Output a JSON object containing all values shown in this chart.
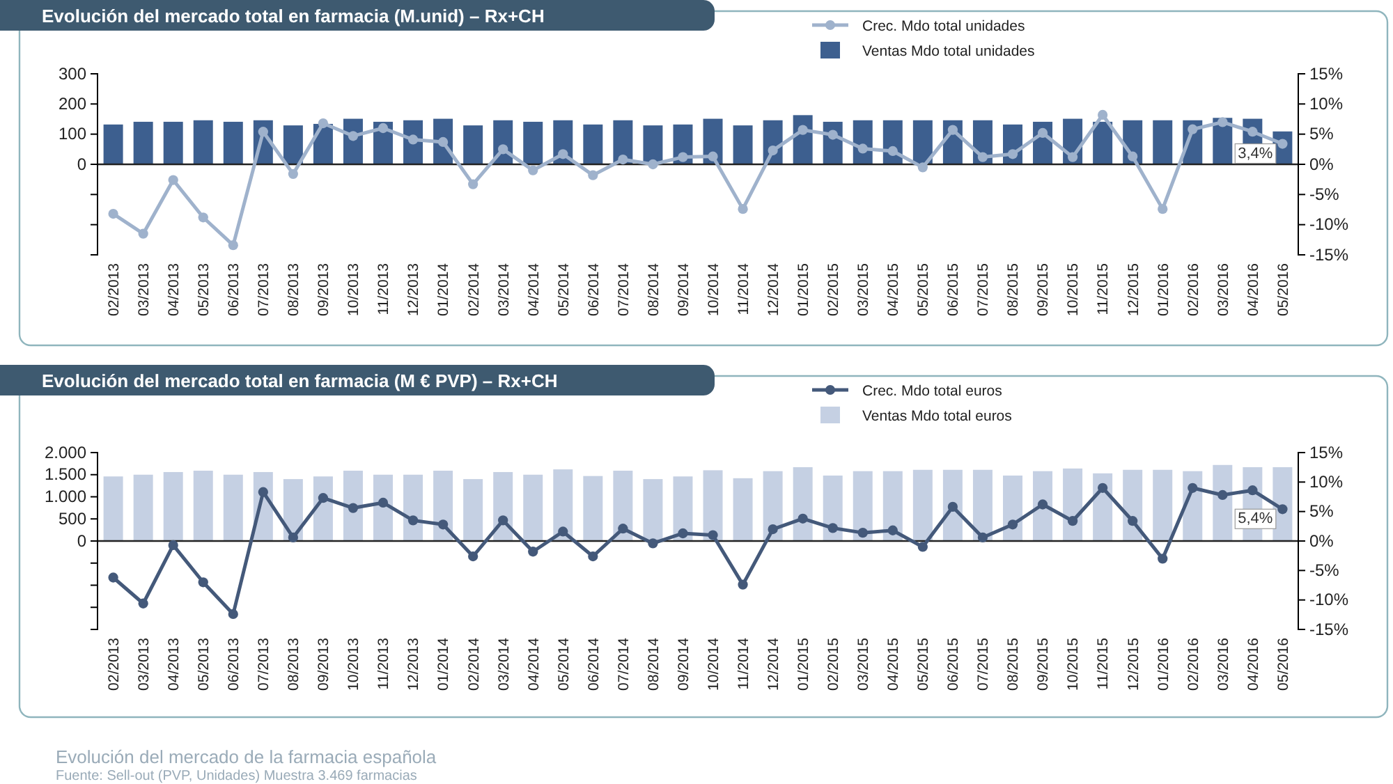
{
  "chart_data": [
    {
      "type": "bar",
      "title": "Evolución del mercado total en farmacia (M.unid) – Rx+CH",
      "categories": [
        "02/2013",
        "03/2013",
        "04/2013",
        "05/2013",
        "06/2013",
        "07/2013",
        "08/2013",
        "09/2013",
        "10/2013",
        "11/2013",
        "12/2013",
        "01/2014",
        "02/2014",
        "03/2014",
        "04/2014",
        "05/2014",
        "06/2014",
        "07/2014",
        "08/2014",
        "09/2014",
        "10/2014",
        "11/2014",
        "12/2014",
        "01/2015",
        "02/2015",
        "03/2015",
        "04/2015",
        "05/2015",
        "06/2015",
        "07/2015",
        "08/2015",
        "09/2015",
        "10/2015",
        "11/2015",
        "12/2015",
        "01/2016",
        "02/2016",
        "03/2016",
        "04/2016",
        "05/2016"
      ],
      "series": [
        {
          "name": "Crec. Mdo total unidades",
          "type": "line",
          "axis": "y2",
          "color": "#9fb2cc",
          "values": [
            -8.2,
            -11.5,
            -2.6,
            -8.8,
            -13.4,
            5.4,
            -1.6,
            6.8,
            4.7,
            6.0,
            4.1,
            3.7,
            -3.3,
            2.5,
            -1.0,
            1.7,
            -1.8,
            0.8,
            0.0,
            1.2,
            1.3,
            -7.4,
            2.3,
            5.7,
            4.9,
            2.6,
            2.2,
            -0.5,
            5.7,
            1.2,
            1.7,
            5.2,
            1.2,
            8.2,
            1.3,
            -7.4,
            5.8,
            7.0,
            5.4,
            3.4
          ],
          "value_labels": [
            null,
            null,
            null,
            null,
            null,
            null,
            null,
            null,
            null,
            null,
            null,
            null,
            null,
            null,
            null,
            null,
            null,
            null,
            null,
            null,
            null,
            null,
            null,
            null,
            null,
            null,
            null,
            null,
            null,
            null,
            null,
            null,
            null,
            null,
            null,
            null,
            null,
            null,
            null,
            "3,4%"
          ]
        },
        {
          "name": "Ventas Mdo total unidades",
          "type": "bar",
          "color": "#3d5f8f",
          "values": [
            132,
            141,
            141,
            146,
            141,
            146,
            129,
            134,
            151,
            141,
            146,
            151,
            129,
            146,
            141,
            146,
            132,
            146,
            129,
            132,
            151,
            129,
            146,
            163,
            141,
            146,
            146,
            146,
            146,
            146,
            132,
            141,
            151,
            141,
            146,
            146,
            146,
            154,
            151,
            109
          ]
        }
      ],
      "ylim": [
        -300,
        300
      ],
      "yticks": [
        {
          "value": -300,
          "label": null
        },
        {
          "value": -200,
          "label": null
        },
        {
          "value": -100,
          "label": null
        },
        0,
        100,
        200,
        300
      ],
      "y2lim": [
        -15,
        15
      ],
      "y2ticks": [
        {
          "value": -15,
          "label": "-15%"
        },
        {
          "value": -10,
          "label": "-10%"
        },
        {
          "value": -5,
          "label": "-5%"
        },
        {
          "value": 0,
          "label": "0%"
        },
        {
          "value": 5,
          "label": "5%"
        },
        {
          "value": 10,
          "label": "10%"
        },
        {
          "value": 15,
          "label": "15%"
        }
      ],
      "ref_lines": [
        {
          "axis": "y",
          "value": 0,
          "color": "#222222"
        }
      ],
      "marker": "circle",
      "legend": "top",
      "grid": false
    },
    {
      "type": "bar",
      "title": "Evolución del mercado total en farmacia (M € PVP) – Rx+CH",
      "categories": [
        "02/2013",
        "03/2013",
        "04/2013",
        "05/2013",
        "06/2013",
        "07/2013",
        "08/2013",
        "09/2013",
        "10/2013",
        "11/2013",
        "12/2013",
        "01/2014",
        "02/2014",
        "03/2014",
        "04/2014",
        "05/2014",
        "06/2014",
        "07/2014",
        "08/2014",
        "09/2014",
        "10/2014",
        "11/2014",
        "12/2014",
        "01/2015",
        "02/2015",
        "03/2015",
        "04/2015",
        "05/2015",
        "06/2015",
        "07/2015",
        "08/2015",
        "09/2015",
        "10/2015",
        "11/2015",
        "12/2015",
        "01/2016",
        "02/2016",
        "03/2016",
        "04/2016",
        "05/2016"
      ],
      "series": [
        {
          "name": "Crec. Mdo total euros",
          "type": "line",
          "axis": "y2",
          "color": "#44597a",
          "values": [
            -6.2,
            -10.6,
            -0.7,
            -7.0,
            -12.4,
            8.3,
            0.6,
            7.3,
            5.6,
            6.5,
            3.5,
            2.8,
            -2.6,
            3.5,
            -1.8,
            1.6,
            -2.6,
            2.1,
            -0.4,
            1.3,
            1.0,
            -7.4,
            2.0,
            3.8,
            2.2,
            1.4,
            1.8,
            -1.0,
            5.8,
            0.6,
            2.8,
            6.2,
            3.4,
            9.0,
            3.4,
            -3.0,
            9.0,
            7.8,
            8.6,
            5.4
          ],
          "value_labels": [
            null,
            null,
            null,
            null,
            null,
            null,
            null,
            null,
            null,
            null,
            null,
            null,
            null,
            null,
            null,
            null,
            null,
            null,
            null,
            null,
            null,
            null,
            null,
            null,
            null,
            null,
            null,
            null,
            null,
            null,
            null,
            null,
            null,
            null,
            null,
            null,
            null,
            null,
            null,
            "5,4%"
          ]
        },
        {
          "name": "Ventas Mdo total euros",
          "type": "bar",
          "color": "#c5d0e3",
          "values": [
            1460,
            1500,
            1560,
            1590,
            1500,
            1560,
            1400,
            1460,
            1590,
            1500,
            1500,
            1590,
            1400,
            1560,
            1500,
            1620,
            1470,
            1590,
            1400,
            1460,
            1600,
            1420,
            1580,
            1670,
            1480,
            1580,
            1580,
            1610,
            1610,
            1610,
            1480,
            1580,
            1640,
            1530,
            1610,
            1610,
            1580,
            1720,
            1670,
            1670
          ]
        }
      ],
      "ylim": [
        -2000,
        2000
      ],
      "yticks": [
        {
          "value": -2000,
          "label": null
        },
        {
          "value": -1500,
          "label": null
        },
        {
          "value": -1000,
          "label": null
        },
        {
          "value": -500,
          "label": null
        },
        0,
        500,
        {
          "value": 1000,
          "label": "1.000"
        },
        {
          "value": 1500,
          "label": "1.500"
        },
        {
          "value": 2000,
          "label": "2.000"
        }
      ],
      "y2lim": [
        -15,
        15
      ],
      "y2ticks": [
        {
          "value": -15,
          "label": "-15%"
        },
        {
          "value": -10,
          "label": "-10%"
        },
        {
          "value": -5,
          "label": "-5%"
        },
        {
          "value": 0,
          "label": "0%"
        },
        {
          "value": 5,
          "label": "5%"
        },
        {
          "value": 10,
          "label": "10%"
        },
        {
          "value": 15,
          "label": "15%"
        }
      ],
      "ref_lines": [
        {
          "axis": "y",
          "value": 0,
          "color": "#222222"
        }
      ],
      "marker": "circle",
      "legend": "top",
      "grid": false,
      "annotations": [
        "Evolución del mercado de la farmacia española",
        "Fuente: Sell-out (PVP, Unidades) Muestra 3.469 farmacias"
      ]
    }
  ]
}
